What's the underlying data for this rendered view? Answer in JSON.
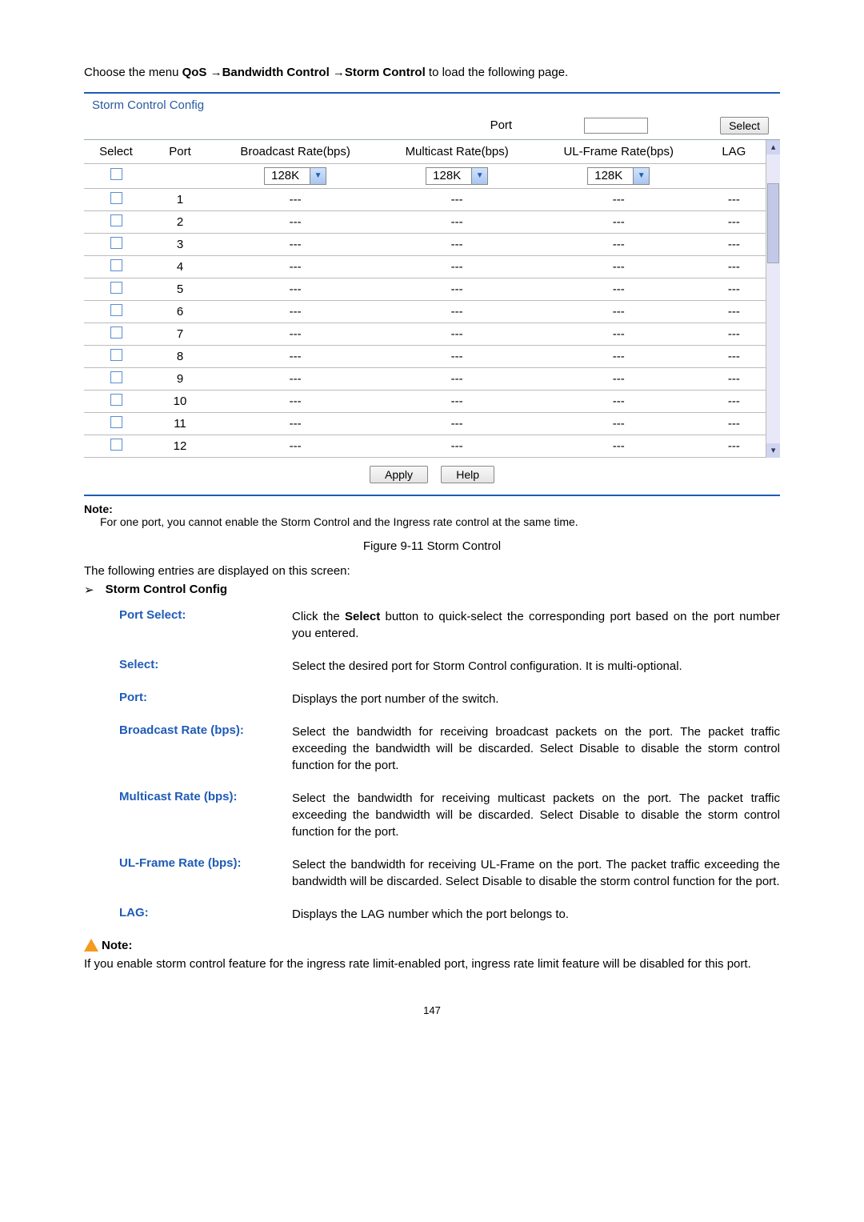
{
  "breadcrumb": {
    "prefix": "Choose the menu ",
    "path1": "QoS",
    "arrow": " →",
    "path2": "Bandwidth Control",
    "path3": "Storm Control",
    "suffix": " to load the following page."
  },
  "panel": {
    "title": "Storm Control Config",
    "port_label": "Port",
    "select_btn": "Select",
    "columns": {
      "select": "Select",
      "port": "Port",
      "broadcast": "Broadcast Rate(bps)",
      "multicast": "Multicast Rate(bps)",
      "ulframe": "UL-Frame Rate(bps)",
      "lag": "LAG"
    },
    "rate_default": "128K",
    "rows": [
      {
        "port": "1",
        "b": "---",
        "m": "---",
        "u": "---",
        "lag": "---"
      },
      {
        "port": "2",
        "b": "---",
        "m": "---",
        "u": "---",
        "lag": "---"
      },
      {
        "port": "3",
        "b": "---",
        "m": "---",
        "u": "---",
        "lag": "---"
      },
      {
        "port": "4",
        "b": "---",
        "m": "---",
        "u": "---",
        "lag": "---"
      },
      {
        "port": "5",
        "b": "---",
        "m": "---",
        "u": "---",
        "lag": "---"
      },
      {
        "port": "6",
        "b": "---",
        "m": "---",
        "u": "---",
        "lag": "---"
      },
      {
        "port": "7",
        "b": "---",
        "m": "---",
        "u": "---",
        "lag": "---"
      },
      {
        "port": "8",
        "b": "---",
        "m": "---",
        "u": "---",
        "lag": "---"
      },
      {
        "port": "9",
        "b": "---",
        "m": "---",
        "u": "---",
        "lag": "---"
      },
      {
        "port": "10",
        "b": "---",
        "m": "---",
        "u": "---",
        "lag": "---"
      },
      {
        "port": "11",
        "b": "---",
        "m": "---",
        "u": "---",
        "lag": "---"
      },
      {
        "port": "12",
        "b": "---",
        "m": "---",
        "u": "---",
        "lag": "---"
      }
    ],
    "apply_btn": "Apply",
    "help_btn": "Help"
  },
  "note1": {
    "label": "Note:",
    "text": "For one port, you cannot enable the Storm Control and the Ingress rate control at the same time."
  },
  "figure_caption": "Figure 9-11 Storm Control",
  "intro_line": "The following entries are displayed on this screen:",
  "sub_heading": "Storm Control Config",
  "defs": [
    {
      "label": "Port Select:",
      "desc_pre": "Click the ",
      "desc_bold": "Select",
      "desc_post": " button to quick-select the corresponding port based on the port number you entered."
    },
    {
      "label": "Select:",
      "desc": "Select the desired port for Storm Control configuration. It is multi-optional."
    },
    {
      "label": "Port:",
      "desc": "Displays the port number of the switch."
    },
    {
      "label": "Broadcast Rate (bps):",
      "desc": "Select the bandwidth for receiving broadcast packets on the port. The packet traffic exceeding the bandwidth will be discarded. Select Disable to disable the storm control function for the port."
    },
    {
      "label": "Multicast Rate (bps):",
      "desc": "Select the bandwidth for receiving multicast packets on the port. The packet traffic exceeding the bandwidth will be discarded. Select Disable to disable the storm control function for the port."
    },
    {
      "label": "UL-Frame Rate (bps):",
      "desc": "Select the bandwidth for receiving UL-Frame on the port. The packet traffic exceeding the bandwidth will be discarded. Select Disable to disable the storm control function for the port."
    },
    {
      "label": "LAG:",
      "desc": "Displays the LAG number which the port belongs to."
    }
  ],
  "note2": {
    "label": "Note:",
    "text": "If you enable storm control feature for the ingress rate limit-enabled port, ingress rate limit feature will be disabled for this port."
  },
  "page_number": "147",
  "colors": {
    "link_blue": "#1e5bb8",
    "panel_border": "#1e5bb8",
    "warn_orange": "#f59a1d"
  }
}
